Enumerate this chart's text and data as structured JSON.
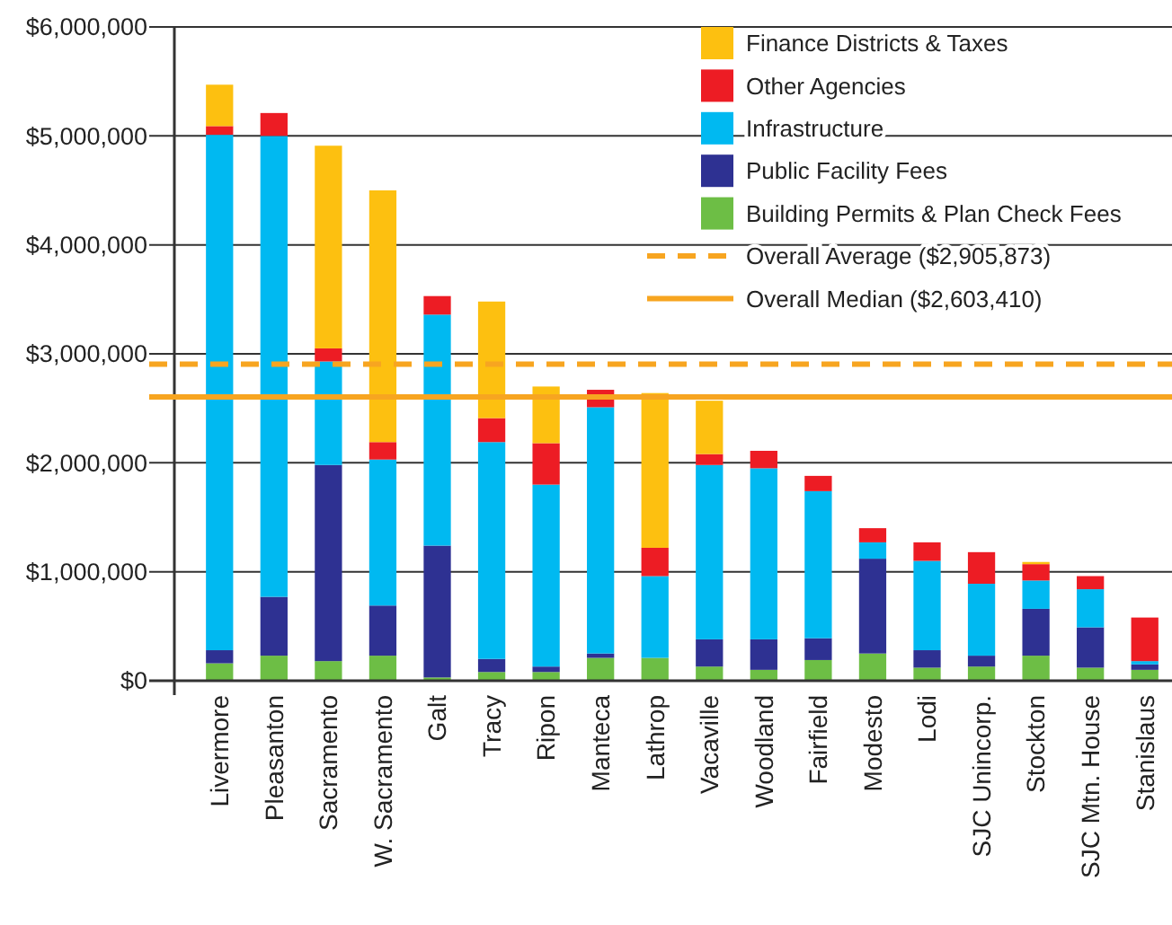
{
  "chart_data": {
    "type": "bar",
    "stacked": true,
    "categories": [
      "Livermore",
      "Pleasanton",
      "Sacramento",
      "W. Sacramento",
      "Galt",
      "Tracy",
      "Ripon",
      "Manteca",
      "Lathrop",
      "Vacaville",
      "Woodland",
      "Fairfield",
      "Modesto",
      "Lodi",
      "SJC Unincorp.",
      "Stockton",
      "SJC Mtn. House",
      "Stanislaus"
    ],
    "series": [
      {
        "name": "Building Permits & Plan Check Fees",
        "color": "#6dbe45",
        "values": [
          160000,
          230000,
          180000,
          230000,
          30000,
          80000,
          80000,
          210000,
          210000,
          130000,
          100000,
          190000,
          250000,
          120000,
          130000,
          230000,
          120000,
          100000
        ]
      },
      {
        "name": "Public Facility Fees",
        "color": "#2e3192",
        "values": [
          120000,
          540000,
          1800000,
          460000,
          1210000,
          120000,
          50000,
          40000,
          0,
          250000,
          280000,
          200000,
          870000,
          160000,
          100000,
          430000,
          370000,
          50000
        ]
      },
      {
        "name": "Infrastructure",
        "color": "#00b9f1",
        "values": [
          4730000,
          4230000,
          950000,
          1340000,
          2120000,
          1990000,
          1670000,
          2260000,
          750000,
          1600000,
          1570000,
          1350000,
          150000,
          820000,
          660000,
          260000,
          350000,
          30000
        ]
      },
      {
        "name": "Other Agencies",
        "color": "#ed1c24",
        "values": [
          80000,
          210000,
          120000,
          160000,
          170000,
          220000,
          380000,
          160000,
          260000,
          100000,
          160000,
          140000,
          130000,
          170000,
          290000,
          150000,
          120000,
          400000
        ]
      },
      {
        "name": "Finance Districts & Taxes",
        "color": "#fdc010",
        "values": [
          380000,
          0,
          1860000,
          2310000,
          0,
          1070000,
          520000,
          0,
          1420000,
          490000,
          0,
          0,
          0,
          0,
          0,
          20000,
          0,
          0
        ]
      }
    ],
    "ylim": [
      0,
      6000000
    ],
    "yticks": [
      {
        "value": 0,
        "label": "$0"
      },
      {
        "value": 1000000,
        "label": "$1,000,000"
      },
      {
        "value": 2000000,
        "label": "$2,000,000"
      },
      {
        "value": 3000000,
        "label": "$3,000,000"
      },
      {
        "value": 4000000,
        "label": "$4,000,000"
      },
      {
        "value": 5000000,
        "label": "$5,000,000"
      },
      {
        "value": 6000000,
        "label": "$6,000,000"
      }
    ],
    "grid": "y",
    "legend": "top right",
    "ref_lines": [
      {
        "axis": "y",
        "value": 2905873,
        "label": "Overall Average ($2,905,873)",
        "color": "#f7a520",
        "line_style": "dashed"
      },
      {
        "axis": "y",
        "value": 2603410,
        "label": "Overall Median ($2,603,410)",
        "color": "#f7a520",
        "line_style": "solid"
      }
    ]
  }
}
